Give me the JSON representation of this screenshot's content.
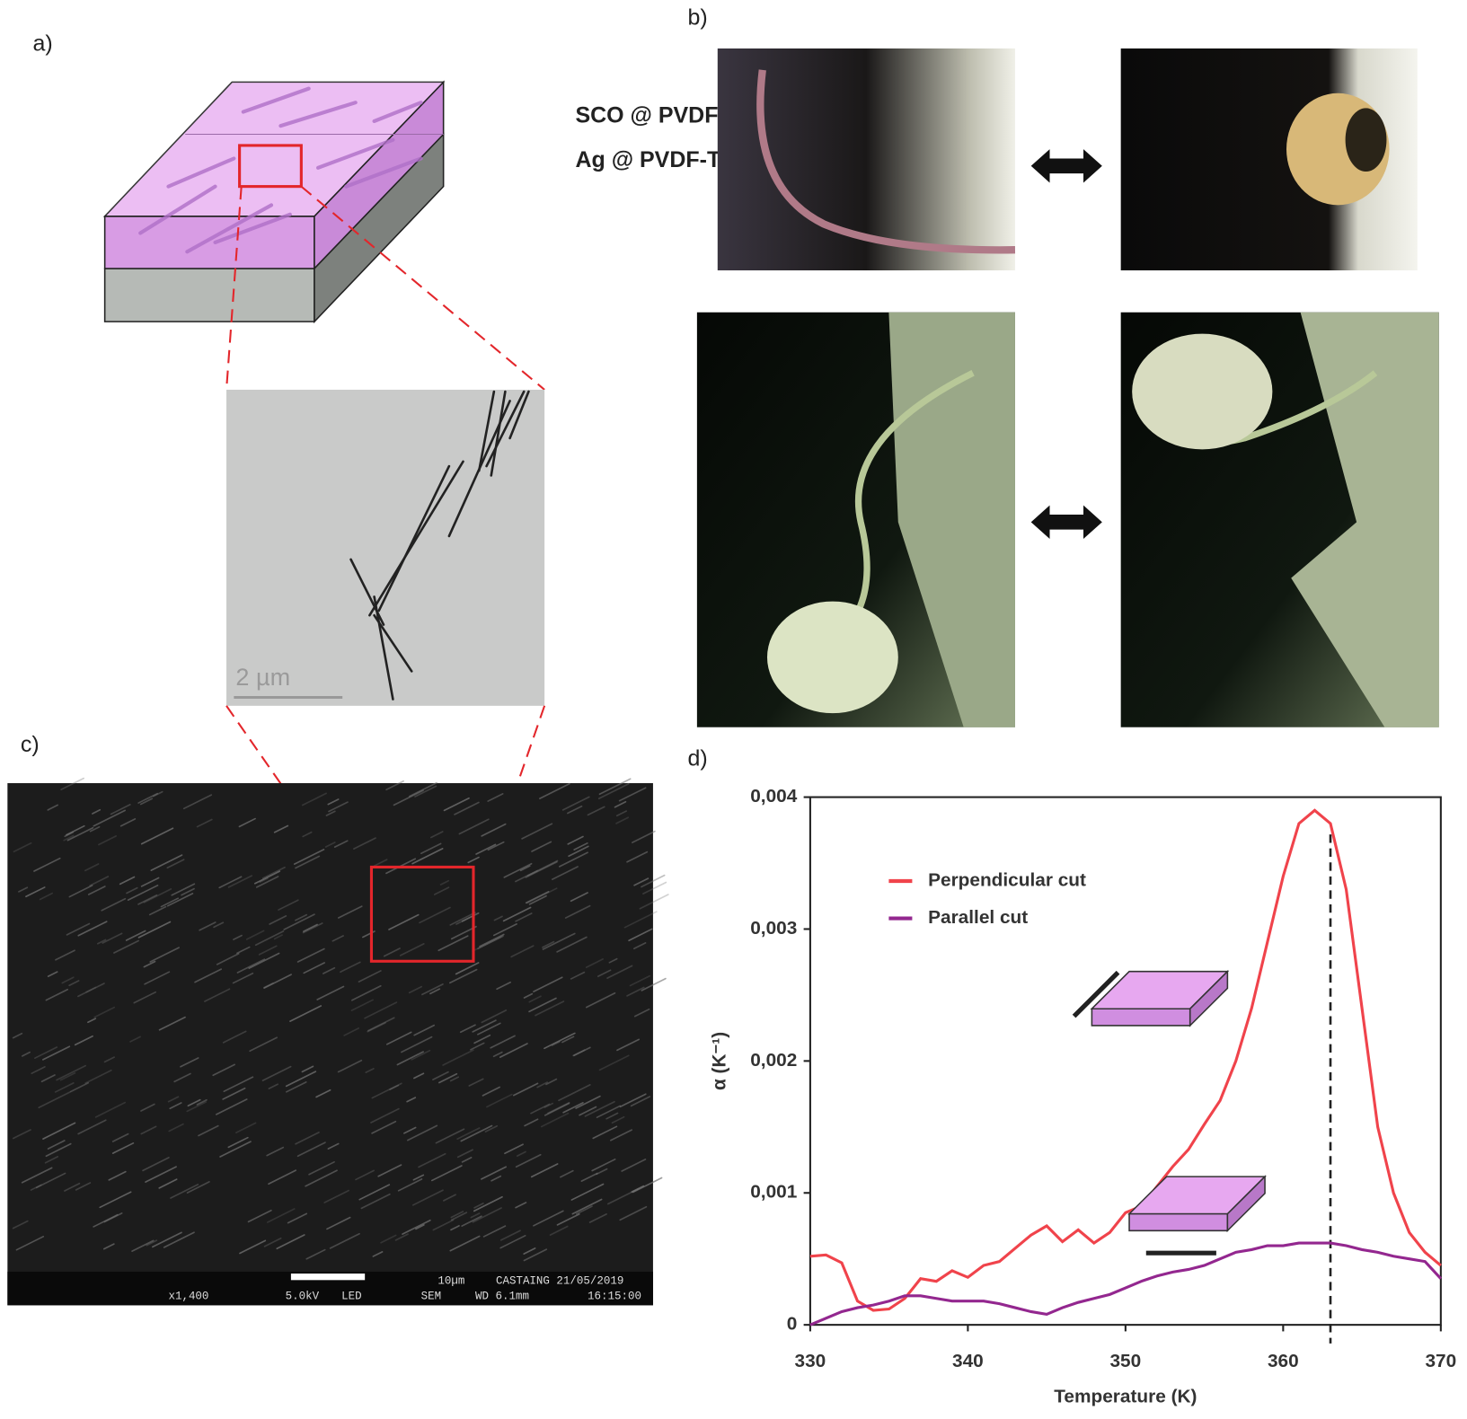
{
  "panels": {
    "a": "a)",
    "b": "b)",
    "c": "c)",
    "d": "d)"
  },
  "diagram_labels": [
    "SCO @ PVDF-TrFE",
    "Ag @ PVDF-TrFE"
  ],
  "tem_scale": "2 µm",
  "sem_info": {
    "scale": "10µm",
    "operator": "CASTAING 21/05/2019",
    "mag": "x1,400",
    "voltage": "5.0kV",
    "detector": "LED",
    "mode": "SEM",
    "wd": "WD 6.1mm",
    "time": "16:15:00"
  },
  "chart_data": {
    "type": "line",
    "xlabel": "Temperature (K)",
    "ylabel": "α (K⁻¹)",
    "xlim": [
      330,
      370
    ],
    "ylim": [
      0,
      0.004
    ],
    "xticks": [
      330,
      340,
      350,
      360,
      370
    ],
    "yticks": [
      0,
      {
        "value": 0.001,
        "label": "0,001"
      },
      {
        "value": 0.002,
        "label": "0,002"
      },
      {
        "value": 0.003,
        "label": "0,003"
      },
      {
        "value": 0.004,
        "label": "0,004"
      }
    ],
    "marker_x": 363,
    "x": [
      330,
      331,
      332,
      333,
      334,
      335,
      336,
      337,
      338,
      339,
      340,
      341,
      342,
      343,
      344,
      345,
      346,
      347,
      348,
      349,
      350,
      351,
      352,
      353,
      354,
      355,
      356,
      357,
      358,
      359,
      360,
      361,
      362,
      363,
      364,
      365,
      366,
      367,
      368,
      369,
      370
    ],
    "series": [
      {
        "name": "Perpendicular cut",
        "color": "#f0434b",
        "values": [
          0.00052,
          0.00053,
          0.00047,
          0.00018,
          0.00011,
          0.00012,
          0.0002,
          0.00035,
          0.00033,
          0.00041,
          0.00036,
          0.00045,
          0.00048,
          0.00058,
          0.00068,
          0.00075,
          0.00063,
          0.00072,
          0.00062,
          0.0007,
          0.00085,
          0.0009,
          0.00105,
          0.0012,
          0.00133,
          0.00152,
          0.0017,
          0.002,
          0.0024,
          0.0029,
          0.0034,
          0.0038,
          0.0039,
          0.0038,
          0.0033,
          0.0024,
          0.0015,
          0.001,
          0.0007,
          0.00055,
          0.00045
        ]
      },
      {
        "name": "Parallel cut",
        "color": "#93278f",
        "values": [
          0,
          5e-05,
          0.0001,
          0.00013,
          0.00015,
          0.00018,
          0.00022,
          0.00022,
          0.0002,
          0.00018,
          0.00018,
          0.00018,
          0.00016,
          0.00013,
          0.0001,
          8e-05,
          0.00013,
          0.00017,
          0.0002,
          0.00023,
          0.00028,
          0.00033,
          0.00037,
          0.0004,
          0.00042,
          0.00045,
          0.0005,
          0.00055,
          0.00057,
          0.0006,
          0.0006,
          0.00062,
          0.00062,
          0.00062,
          0.0006,
          0.00057,
          0.00055,
          0.00052,
          0.0005,
          0.00048,
          0.00035
        ]
      }
    ]
  }
}
